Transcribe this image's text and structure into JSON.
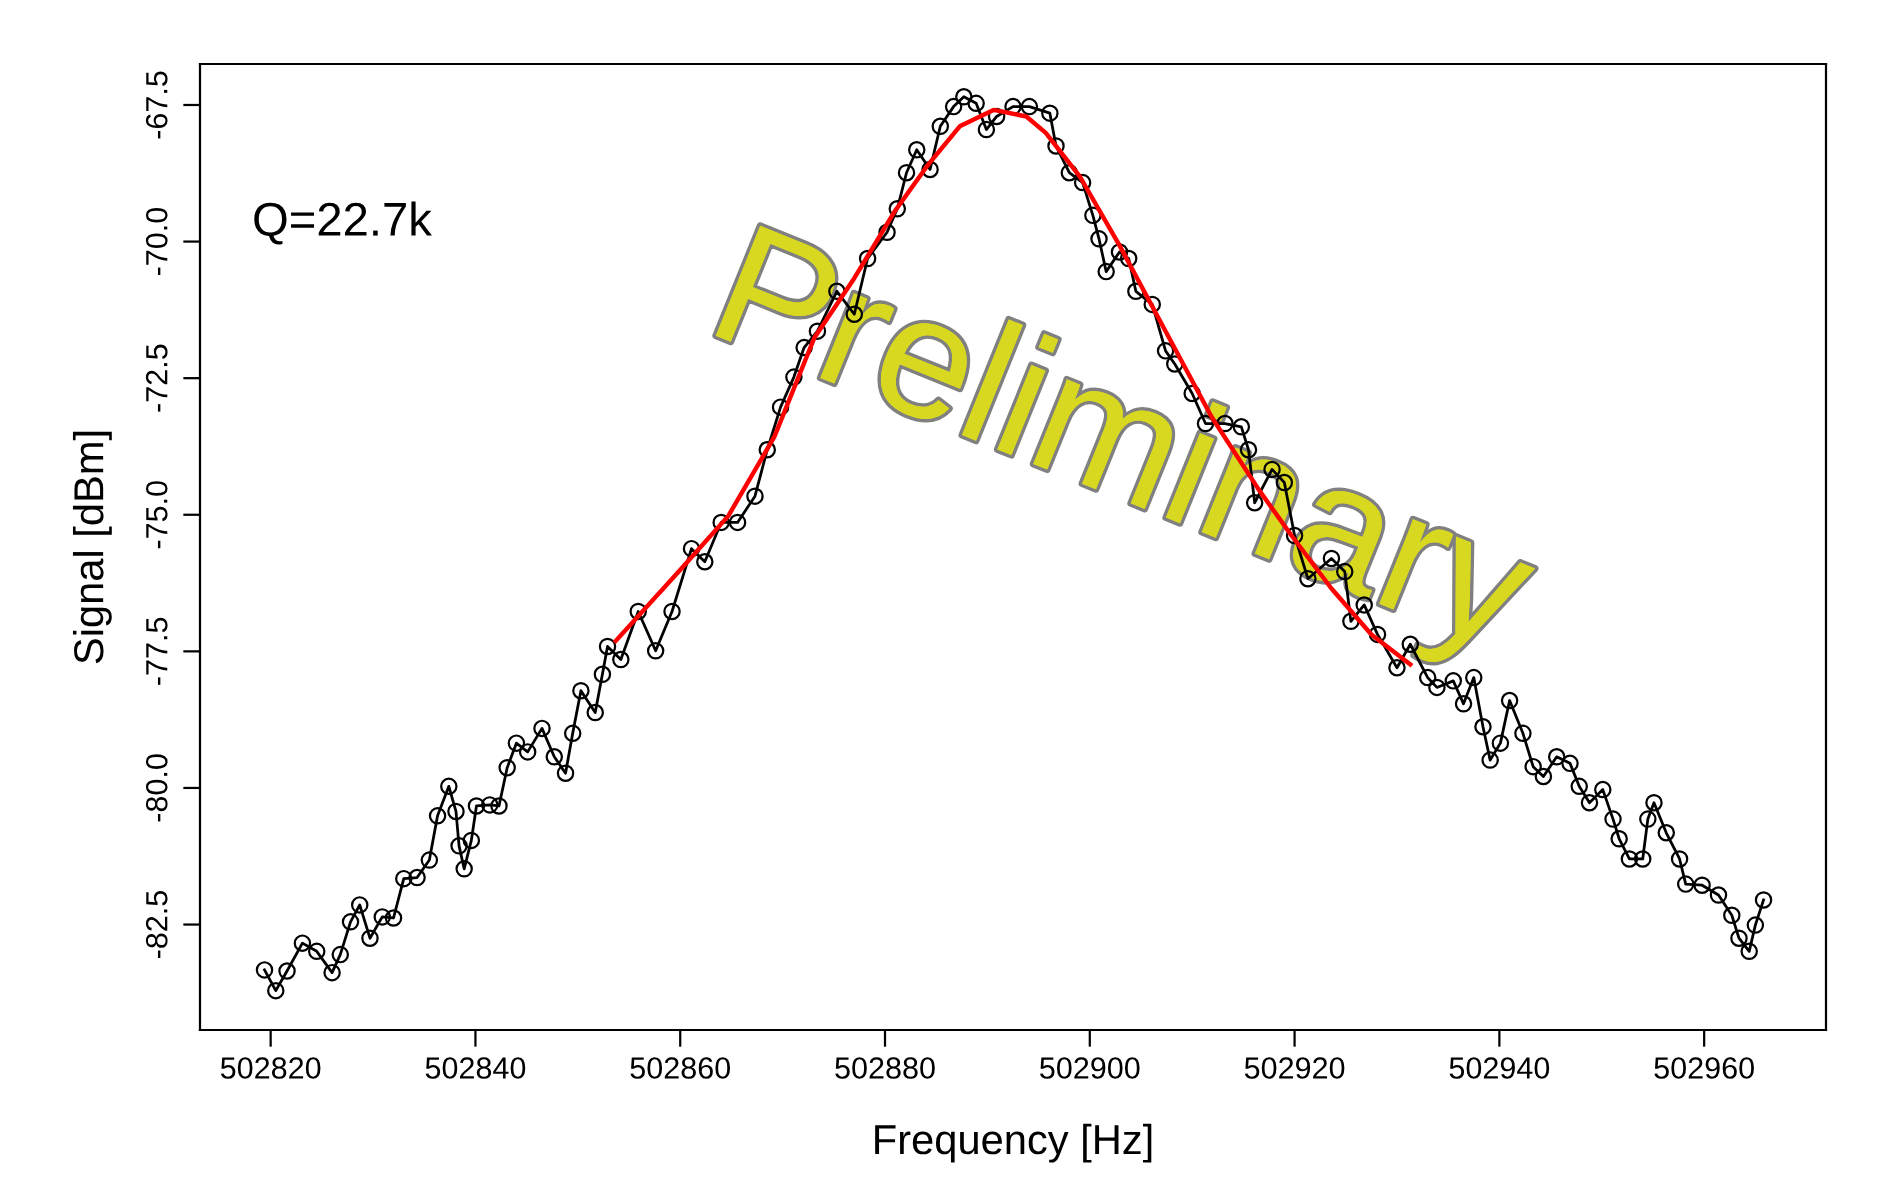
{
  "chart_data": {
    "type": "line",
    "xlabel": "Frequency [Hz]",
    "ylabel": "Signal [dBm]",
    "xlim": [
      502813.1,
      502971.9
    ],
    "ylim": [
      -84.43,
      -66.75
    ],
    "xticks": [
      502820,
      502840,
      502860,
      502880,
      502900,
      502920,
      502940,
      502960
    ],
    "yticks": [
      {
        "value": -67.5,
        "label": "-67.5"
      },
      {
        "value": -70,
        "label": "-70.0"
      },
      {
        "value": -72.5,
        "label": "-72.5"
      },
      {
        "value": -75,
        "label": "-75.0"
      },
      {
        "value": -77.5,
        "label": "-77.5"
      },
      {
        "value": -80,
        "label": "-80.0"
      },
      {
        "value": -82.5,
        "label": "-82.5"
      }
    ],
    "grid": false,
    "legend": false,
    "annotations": [
      "Q=22.7k",
      "Preliminary"
    ],
    "series": [
      {
        "color": "#000000",
        "marker": "circle",
        "line_style": "solid",
        "x": [
          502819.4,
          502820.5,
          502821.6,
          502823.1,
          502824.5,
          502826.0,
          502826.8,
          502827.8,
          502828.7,
          502829.7,
          502830.9,
          502832.0,
          502833.0,
          502834.3,
          502835.5,
          502836.3,
          502837.4,
          502838.1,
          502838.4,
          502838.9,
          502839.6,
          502840.1,
          502841.4,
          502842.3,
          502843.1,
          502844.0,
          502845.1,
          502846.5,
          502847.7,
          502848.8,
          502849.5,
          502850.3,
          502851.7,
          502852.4,
          502852.9,
          502854.2,
          502855.9,
          502857.6,
          502859.2,
          502861.1,
          502862.4,
          502864.0,
          502865.6,
          502867.3,
          502868.5,
          502869.8,
          502871.1,
          502872.1,
          502873.4,
          502875.3,
          502877.0,
          502878.3,
          502880.2,
          502881.2,
          502882.1,
          502883.1,
          502884.4,
          502885.4,
          502886.7,
          502887.7,
          502888.9,
          502889.9,
          502890.9,
          502892.5,
          502894.1,
          502896.1,
          502896.7,
          502898.0,
          502899.3,
          502900.3,
          502900.9,
          502901.6,
          502902.9,
          502903.8,
          502904.5,
          502906.1,
          502907.4,
          502908.3,
          502910.0,
          502911.3,
          502913.2,
          502914.8,
          502915.5,
          502916.1,
          502917.8,
          502919.0,
          502920.0,
          502921.3,
          502923.6,
          502924.9,
          502925.5,
          502926.8,
          502928.1,
          502930.0,
          502931.3,
          502933.0,
          502933.9,
          502935.5,
          502936.5,
          502937.5,
          502938.4,
          502939.1,
          502940.1,
          502941.0,
          502942.3,
          502943.3,
          502944.3,
          502945.6,
          502946.9,
          502947.8,
          502948.8,
          502950.1,
          502951.1,
          502951.7,
          502952.7,
          502954.0,
          502954.5,
          502955.1,
          502956.3,
          502957.6,
          502958.2,
          502959.8,
          502961.4,
          502962.7,
          502963.4,
          502964.4,
          502965.0,
          502965.8
        ],
        "values": [
          -83.33,
          -83.71,
          -83.35,
          -82.84,
          -82.99,
          -83.38,
          -83.05,
          -82.45,
          -82.14,
          -82.75,
          -82.36,
          -82.38,
          -81.66,
          -81.64,
          -81.32,
          -80.51,
          -79.97,
          -80.43,
          -81.06,
          -81.48,
          -80.96,
          -80.33,
          -80.31,
          -80.33,
          -79.63,
          -79.18,
          -79.34,
          -78.91,
          -79.43,
          -79.73,
          -79.0,
          -78.22,
          -78.62,
          -77.92,
          -77.41,
          -77.65,
          -76.77,
          -77.49,
          -76.77,
          -75.62,
          -75.86,
          -75.14,
          -75.14,
          -74.66,
          -73.81,
          -73.03,
          -72.48,
          -71.94,
          -71.64,
          -70.91,
          -71.33,
          -70.31,
          -69.83,
          -69.4,
          -68.74,
          -68.32,
          -68.68,
          -67.89,
          -67.53,
          -67.35,
          -67.47,
          -67.95,
          -67.71,
          -67.53,
          -67.53,
          -67.65,
          -68.25,
          -68.74,
          -68.92,
          -69.52,
          -69.95,
          -70.55,
          -70.19,
          -70.31,
          -70.91,
          -71.15,
          -72.0,
          -72.24,
          -72.78,
          -73.33,
          -73.33,
          -73.39,
          -73.81,
          -74.78,
          -74.17,
          -74.41,
          -75.38,
          -76.17,
          -75.8,
          -76.04,
          -76.95,
          -76.65,
          -77.19,
          -77.8,
          -77.37,
          -77.98,
          -78.16,
          -78.04,
          -78.46,
          -77.98,
          -78.88,
          -79.49,
          -79.18,
          -78.4,
          -79.0,
          -79.61,
          -79.79,
          -79.43,
          -79.55,
          -79.97,
          -80.27,
          -80.03,
          -80.57,
          -80.93,
          -81.3,
          -81.3,
          -80.57,
          -80.27,
          -80.82,
          -81.3,
          -81.76,
          -81.78,
          -81.96,
          -82.33,
          -82.75,
          -82.99,
          -82.51,
          -82.05
        ]
      },
      {
        "color": "#ff0000",
        "marker": "none",
        "line_style": "solid",
        "x": [
          502853.7,
          502860.1,
          502864.7,
          502869.2,
          502873.1,
          502877.0,
          502880.9,
          502884.1,
          502887.3,
          502890.6,
          502893.8,
          502895.7,
          502899.0,
          502902.9,
          502907.4,
          502911.9,
          502916.5,
          502919.7,
          502923.6,
          502927.5,
          502931.3
        ],
        "values": [
          -77.31,
          -75.99,
          -75.02,
          -73.57,
          -71.76,
          -70.67,
          -69.46,
          -68.62,
          -67.89,
          -67.59,
          -67.71,
          -68.01,
          -68.8,
          -70.07,
          -71.64,
          -73.21,
          -74.54,
          -75.38,
          -76.35,
          -77.19,
          -77.74
        ]
      }
    ]
  }
}
